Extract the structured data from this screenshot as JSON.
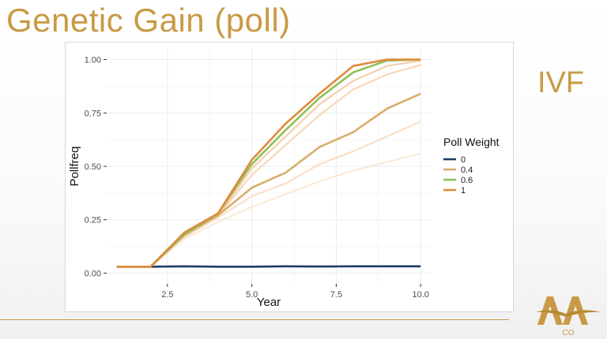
{
  "slide": {
    "title": "Genetic Gain (poll)",
    "side_label": "IVF",
    "logo_text": "CO",
    "accent_color": "#c89a45"
  },
  "chart_data": {
    "type": "line",
    "xlabel": "Year",
    "ylabel": "Pollfreq",
    "xlim": [
      0.7,
      10.3
    ],
    "ylim": [
      -0.05,
      1.05
    ],
    "xticks": [
      "2.5",
      "5.0",
      "7.5",
      "10.0"
    ],
    "xtick_values": [
      2.5,
      5.0,
      7.5,
      10.0
    ],
    "yticks": [
      "0.00",
      "0.25",
      "0.50",
      "0.75",
      "1.00"
    ],
    "ytick_values": [
      0,
      0.25,
      0.5,
      0.75,
      1.0
    ],
    "grid": true,
    "legend": {
      "title": "Poll Weight",
      "placement": "right"
    },
    "x": [
      1,
      2,
      3,
      4,
      5,
      6,
      7,
      8,
      9,
      10
    ],
    "series": [
      {
        "name": "0",
        "color": "#1f3a66",
        "opacity": 1,
        "values": [
          0.03,
          0.03,
          0.032,
          0.03,
          0.03,
          0.032,
          0.031,
          0.032,
          0.032,
          0.032
        ]
      },
      {
        "name": "0.4",
        "color": "#d9ad6a",
        "opacity": 1,
        "values": [
          0.03,
          0.03,
          0.18,
          0.27,
          0.4,
          0.47,
          0.59,
          0.66,
          0.77,
          0.84
        ]
      },
      {
        "name": "0.6",
        "color": "#8fc05a",
        "opacity": 1,
        "values": [
          0.03,
          0.03,
          0.18,
          0.28,
          0.51,
          0.67,
          0.82,
          0.94,
          0.995,
          1.0
        ]
      },
      {
        "name": "1",
        "color": "#e08a3c",
        "opacity": 1,
        "values": [
          0.03,
          0.03,
          0.19,
          0.28,
          0.53,
          0.7,
          0.84,
          0.97,
          1.0,
          1.0
        ]
      }
    ],
    "faded_series": [
      {
        "color": "#f0ba8a",
        "values": [
          0.03,
          0.03,
          0.18,
          0.27,
          0.49,
          0.64,
          0.79,
          0.9,
          0.97,
          0.995
        ]
      },
      {
        "color": "#f3c79c",
        "values": [
          0.03,
          0.03,
          0.17,
          0.27,
          0.46,
          0.6,
          0.74,
          0.86,
          0.93,
          0.975
        ]
      },
      {
        "color": "#f6d3b0",
        "values": [
          0.03,
          0.03,
          0.17,
          0.26,
          0.36,
          0.42,
          0.51,
          0.57,
          0.64,
          0.71
        ]
      },
      {
        "color": "#f9e0c8",
        "values": [
          0.03,
          0.03,
          0.16,
          0.24,
          0.31,
          0.37,
          0.43,
          0.48,
          0.52,
          0.56
        ]
      }
    ]
  }
}
